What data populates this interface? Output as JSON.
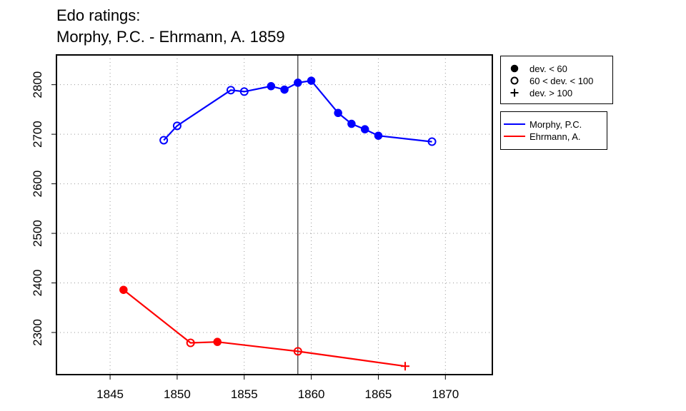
{
  "chart_data": {
    "type": "line",
    "title_line1": "Edo ratings:",
    "title_line2": "Morphy, P.C. - Ehrmann, A. 1859",
    "xlabel": "",
    "ylabel": "",
    "xlim": [
      1841,
      1873.5
    ],
    "ylim": [
      2215,
      2860
    ],
    "x_ticks": [
      1845,
      1850,
      1855,
      1860,
      1865,
      1870
    ],
    "y_ticks": [
      2300,
      2400,
      2500,
      2600,
      2700,
      2800
    ],
    "grid": true,
    "vline_x": 1859,
    "series": [
      {
        "name": "Morphy, P.C.",
        "color": "#0000ff",
        "points": [
          {
            "x": 1849,
            "y": 2688,
            "marker": "open"
          },
          {
            "x": 1850,
            "y": 2717,
            "marker": "open"
          },
          {
            "x": 1854,
            "y": 2789,
            "marker": "open"
          },
          {
            "x": 1855,
            "y": 2786,
            "marker": "open"
          },
          {
            "x": 1857,
            "y": 2797,
            "marker": "filled"
          },
          {
            "x": 1858,
            "y": 2790,
            "marker": "filled"
          },
          {
            "x": 1859,
            "y": 2804,
            "marker": "filled"
          },
          {
            "x": 1860,
            "y": 2808,
            "marker": "filled"
          },
          {
            "x": 1862,
            "y": 2743,
            "marker": "filled"
          },
          {
            "x": 1863,
            "y": 2721,
            "marker": "filled"
          },
          {
            "x": 1864,
            "y": 2710,
            "marker": "filled"
          },
          {
            "x": 1865,
            "y": 2697,
            "marker": "filled"
          },
          {
            "x": 1869,
            "y": 2685,
            "marker": "open"
          }
        ]
      },
      {
        "name": "Ehrmann, A.",
        "color": "#ff0000",
        "points": [
          {
            "x": 1846,
            "y": 2386,
            "marker": "filled"
          },
          {
            "x": 1851,
            "y": 2279,
            "marker": "open"
          },
          {
            "x": 1853,
            "y": 2281,
            "marker": "filled"
          },
          {
            "x": 1859,
            "y": 2262,
            "marker": "open"
          },
          {
            "x": 1867,
            "y": 2232,
            "marker": "plus"
          }
        ]
      }
    ],
    "legend_symbols": [
      {
        "marker": "filled",
        "label": "dev. < 60"
      },
      {
        "marker": "open",
        "label": "60 < dev. < 100"
      },
      {
        "marker": "plus",
        "label": "dev. > 100"
      }
    ],
    "legend_placement": "right"
  }
}
